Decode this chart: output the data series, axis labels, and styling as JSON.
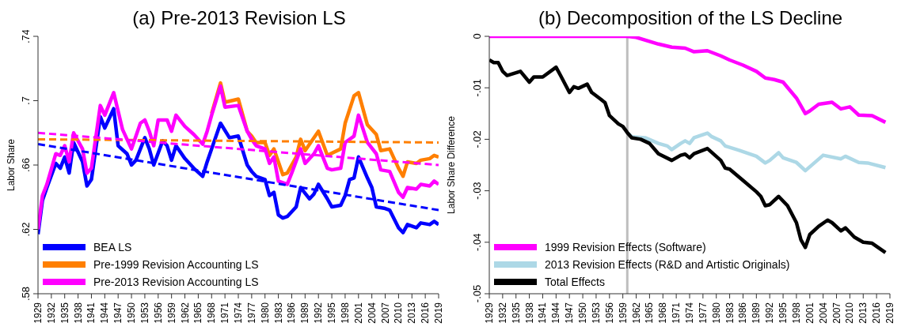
{
  "chart_data": [
    {
      "type": "line",
      "title": "(a) Pre-2013 Revision LS",
      "ylabel": "Labor Share",
      "xlim": [
        1929,
        2019
      ],
      "xticks": [
        1929,
        1932,
        1935,
        1938,
        1941,
        1944,
        1947,
        1950,
        1953,
        1956,
        1959,
        1962,
        1965,
        1968,
        1971,
        1974,
        1977,
        1980,
        1983,
        1986,
        1989,
        1992,
        1995,
        1998,
        2001,
        2004,
        2007,
        2010,
        2013,
        2016,
        2019
      ],
      "ylim": [
        0.58,
        0.74
      ],
      "yticks": [
        {
          "value": 0.58,
          "label": ".58"
        },
        {
          "value": 0.62,
          "label": ".62"
        },
        {
          "value": 0.66,
          "label": ".66"
        },
        {
          "value": 0.7,
          "label": ".7"
        },
        {
          "value": 0.74,
          "label": ".74"
        }
      ],
      "legend": "bottom left",
      "series": [
        {
          "name": "BEA LS",
          "color": "#0000ff",
          "x": [
            1929,
            1930,
            1931,
            1933,
            1934,
            1935,
            1936,
            1937,
            1939,
            1940,
            1941,
            1943,
            1944,
            1946,
            1947,
            1949,
            1950,
            1951,
            1953,
            1954,
            1955,
            1957,
            1958,
            1959,
            1960,
            1962,
            1964,
            1966,
            1967,
            1968,
            1970,
            1972,
            1974,
            1976,
            1977,
            1978,
            1980,
            1981,
            1982,
            1983,
            1984,
            1985,
            1987,
            1988,
            1990,
            1991,
            1992,
            1994,
            1995,
            1997,
            1998,
            1999,
            2000,
            2001,
            2003,
            2004,
            2005,
            2007,
            2008,
            2010,
            2011,
            2012,
            2014,
            2015,
            2017,
            2018,
            2019
          ],
          "values": [
            0.617,
            0.638,
            0.646,
            0.661,
            0.658,
            0.665,
            0.655,
            0.674,
            0.662,
            0.647,
            0.651,
            0.69,
            0.683,
            0.695,
            0.672,
            0.667,
            0.66,
            0.663,
            0.677,
            0.67,
            0.66,
            0.675,
            0.672,
            0.663,
            0.672,
            0.664,
            0.658,
            0.653,
            0.662,
            0.67,
            0.686,
            0.677,
            0.678,
            0.66,
            0.656,
            0.653,
            0.651,
            0.641,
            0.643,
            0.629,
            0.627,
            0.628,
            0.634,
            0.646,
            0.639,
            0.642,
            0.648,
            0.639,
            0.634,
            0.635,
            0.641,
            0.651,
            0.652,
            0.665,
            0.652,
            0.646,
            0.634,
            0.633,
            0.632,
            0.621,
            0.618,
            0.623,
            0.621,
            0.624,
            0.623,
            0.625,
            0.623
          ]
        },
        {
          "name": "Pre-1999 Revision Accounting LS",
          "color": "#ff7f00",
          "x": [
            1968,
            1970,
            1971,
            1974,
            1976,
            1977,
            1978,
            1980,
            1981,
            1982,
            1984,
            1985,
            1987,
            1988,
            1989,
            1992,
            1994,
            1997,
            1998,
            2000,
            2001,
            2003,
            2005,
            2006,
            2008,
            2010,
            2011,
            2012,
            2014,
            2015,
            2017,
            2018,
            2019
          ],
          "values": [
            0.692,
            0.711,
            0.699,
            0.701,
            0.681,
            0.678,
            0.674,
            0.674,
            0.666,
            0.67,
            0.654,
            0.655,
            0.665,
            0.676,
            0.669,
            0.681,
            0.666,
            0.67,
            0.686,
            0.703,
            0.705,
            0.685,
            0.679,
            0.669,
            0.67,
            0.658,
            0.653,
            0.662,
            0.661,
            0.663,
            0.664,
            0.666,
            0.665
          ]
        },
        {
          "name": "Pre-2013 Revision Accounting LS",
          "color": "#ff00ff",
          "x": [
            1929,
            1930,
            1931,
            1933,
            1934,
            1935,
            1936,
            1937,
            1939,
            1940,
            1941,
            1943,
            1944,
            1946,
            1948,
            1950,
            1952,
            1953,
            1954,
            1955,
            1956,
            1958,
            1959,
            1960,
            1962,
            1964,
            1966,
            1967,
            1968,
            1970,
            1971,
            1974,
            1976,
            1977,
            1978,
            1980,
            1981,
            1982,
            1983,
            1985,
            1986,
            1988,
            1989,
            1991,
            1992,
            1994,
            1995,
            1997,
            1998,
            2000,
            2001,
            2003,
            2005,
            2006,
            2008,
            2010,
            2011,
            2012,
            2014,
            2015,
            2017,
            2018,
            2019
          ],
          "values": [
            0.62,
            0.641,
            0.648,
            0.667,
            0.666,
            0.672,
            0.662,
            0.68,
            0.67,
            0.655,
            0.658,
            0.697,
            0.691,
            0.705,
            0.682,
            0.67,
            0.686,
            0.688,
            0.681,
            0.672,
            0.688,
            0.688,
            0.681,
            0.691,
            0.684,
            0.679,
            0.673,
            0.681,
            0.691,
            0.709,
            0.696,
            0.697,
            0.681,
            0.676,
            0.672,
            0.67,
            0.661,
            0.665,
            0.65,
            0.648,
            0.655,
            0.67,
            0.661,
            0.667,
            0.672,
            0.658,
            0.657,
            0.658,
            0.674,
            0.678,
            0.691,
            0.674,
            0.667,
            0.657,
            0.656,
            0.643,
            0.64,
            0.646,
            0.645,
            0.648,
            0.647,
            0.65,
            0.648
          ]
        },
        {
          "color": "#0000ff",
          "line_style": "dashed",
          "x": [
            1929,
            2019
          ],
          "values": [
            0.673,
            0.632
          ]
        },
        {
          "color": "#ff7f00",
          "line_style": "dashed",
          "x": [
            1929,
            2019
          ],
          "values": [
            0.676,
            0.674
          ]
        },
        {
          "color": "#ff00ff",
          "line_style": "dashed",
          "x": [
            1929,
            2019
          ],
          "values": [
            0.68,
            0.66
          ]
        }
      ]
    },
    {
      "type": "line",
      "title": "(b) Decomposition of the LS Decline",
      "ylabel": "Labor Share Difference",
      "xlim": [
        1929,
        2019
      ],
      "xticks": [
        1929,
        1932,
        1935,
        1938,
        1941,
        1944,
        1947,
        1950,
        1953,
        1956,
        1959,
        1962,
        1965,
        1968,
        1971,
        1974,
        1977,
        1980,
        1983,
        1986,
        1989,
        1992,
        1995,
        1998,
        2001,
        2004,
        2007,
        2010,
        2013,
        2016,
        2019
      ],
      "ylim": [
        -0.05,
        0
      ],
      "yticks": [
        {
          "value": -0.05,
          "label": "-.05"
        },
        {
          "value": -0.04,
          "label": "-.04"
        },
        {
          "value": -0.03,
          "label": "-.03"
        },
        {
          "value": -0.02,
          "label": "-.02"
        },
        {
          "value": -0.01,
          "label": "-.01"
        },
        {
          "value": 0,
          "label": "0"
        }
      ],
      "legend": "bottom left",
      "ref_lines": [
        {
          "axis": "x",
          "value": 1960,
          "color": "#bebebe"
        }
      ],
      "series": [
        {
          "name": "1999 Revision Effects (Software)",
          "color": "#ff00ff",
          "x": [
            1929,
            1960,
            1962,
            1967,
            1970,
            1973,
            1975,
            1978,
            1981,
            1983,
            1986,
            1989,
            1991,
            1993,
            1995,
            1998,
            2000,
            2001,
            2003,
            2006,
            2008,
            2010,
            2012,
            2015,
            2018
          ],
          "values": [
            0,
            0,
            -0.0002,
            -0.0015,
            -0.0021,
            -0.0023,
            -0.003,
            -0.0028,
            -0.0038,
            -0.0046,
            -0.0056,
            -0.0068,
            -0.0081,
            -0.0084,
            -0.0089,
            -0.012,
            -0.015,
            -0.0145,
            -0.0132,
            -0.0128,
            -0.0141,
            -0.0137,
            -0.0153,
            -0.0154,
            -0.0167
          ]
        },
        {
          "name": "2013 Revision Effects (R&D and Artistic Originals)",
          "color": "#add8e6",
          "x": [
            1960,
            1961,
            1964,
            1967,
            1969,
            1970,
            1972,
            1973,
            1974,
            1975,
            1978,
            1979,
            1981,
            1982,
            1985,
            1989,
            1991,
            1992,
            1994,
            1995,
            1998,
            2000,
            2002,
            2004,
            2008,
            2009,
            2012,
            2014,
            2018
          ],
          "values": [
            -0.0187,
            -0.0195,
            -0.0197,
            -0.0208,
            -0.0213,
            -0.022,
            -0.0208,
            -0.0203,
            -0.0208,
            -0.0197,
            -0.0188,
            -0.0195,
            -0.0203,
            -0.0213,
            -0.0221,
            -0.0233,
            -0.0246,
            -0.0241,
            -0.0226,
            -0.0236,
            -0.0245,
            -0.0261,
            -0.0246,
            -0.0231,
            -0.0238,
            -0.0233,
            -0.0245,
            -0.0246,
            -0.0255
          ]
        },
        {
          "name": "Total Effects",
          "color": "#000000",
          "x": [
            1929,
            1930,
            1931,
            1932,
            1933,
            1936,
            1938,
            1939,
            1941,
            1944,
            1945,
            1947,
            1948,
            1949,
            1951,
            1952,
            1954,
            1955,
            1956,
            1958,
            1959,
            1960,
            1961,
            1963,
            1965,
            1967,
            1970,
            1972,
            1973,
            1974,
            1975,
            1978,
            1981,
            1982,
            1983,
            1986,
            1989,
            1990,
            1991,
            1992,
            1994,
            1996,
            1998,
            1999,
            2000,
            2001,
            2003,
            2005,
            2006,
            2008,
            2009,
            2011,
            2013,
            2015,
            2018
          ],
          "values": [
            -0.0046,
            -0.0051,
            -0.0051,
            -0.0068,
            -0.0076,
            -0.0068,
            -0.0089,
            -0.0079,
            -0.0079,
            -0.006,
            -0.0076,
            -0.0109,
            -0.0098,
            -0.0101,
            -0.0093,
            -0.0109,
            -0.0122,
            -0.0129,
            -0.0154,
            -0.017,
            -0.0175,
            -0.0187,
            -0.0197,
            -0.02,
            -0.0208,
            -0.0228,
            -0.0241,
            -0.0231,
            -0.0229,
            -0.0236,
            -0.0228,
            -0.0218,
            -0.0241,
            -0.0256,
            -0.0258,
            -0.028,
            -0.0302,
            -0.0311,
            -0.0329,
            -0.0327,
            -0.0311,
            -0.0329,
            -0.0362,
            -0.0395,
            -0.041,
            -0.0385,
            -0.0369,
            -0.0357,
            -0.0362,
            -0.0378,
            -0.0372,
            -0.039,
            -0.04,
            -0.0402,
            -0.042
          ]
        }
      ]
    }
  ]
}
